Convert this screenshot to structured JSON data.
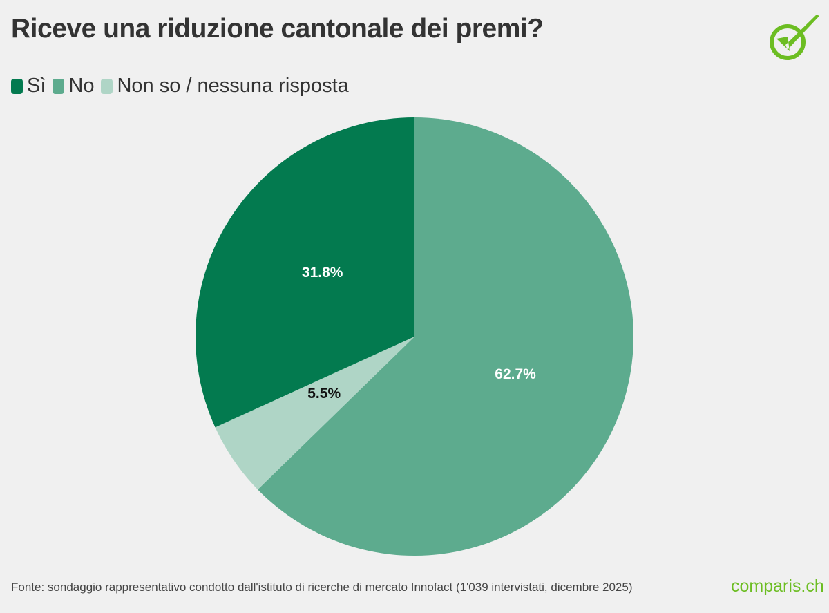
{
  "chart_data": {
    "type": "pie",
    "title": "Riceve una riduzione cantonale dei premi?",
    "legend_position": "top-left",
    "categories": [
      "Sì",
      "No",
      "Non so / nessuna risposta"
    ],
    "values": [
      31.8,
      62.7,
      5.5
    ],
    "labels": [
      "31.8%",
      "62.7%",
      "5.5%"
    ],
    "colors": [
      "#037a4f",
      "#5dab8e",
      "#afd5c6"
    ],
    "label_colors": [
      "#ffffff",
      "#ffffff",
      "#111111"
    ],
    "draw_order": [
      1,
      2,
      0
    ]
  },
  "source": "Fonte: sondaggio rappresentativo condotto dall'istituto di ricerche di mercato Innofact (1'039 intervistati, dicembre 2025)",
  "logo": {
    "text": "comparis.ch",
    "icon": "checkmark-circle-icon",
    "color": "#6cbd22"
  }
}
